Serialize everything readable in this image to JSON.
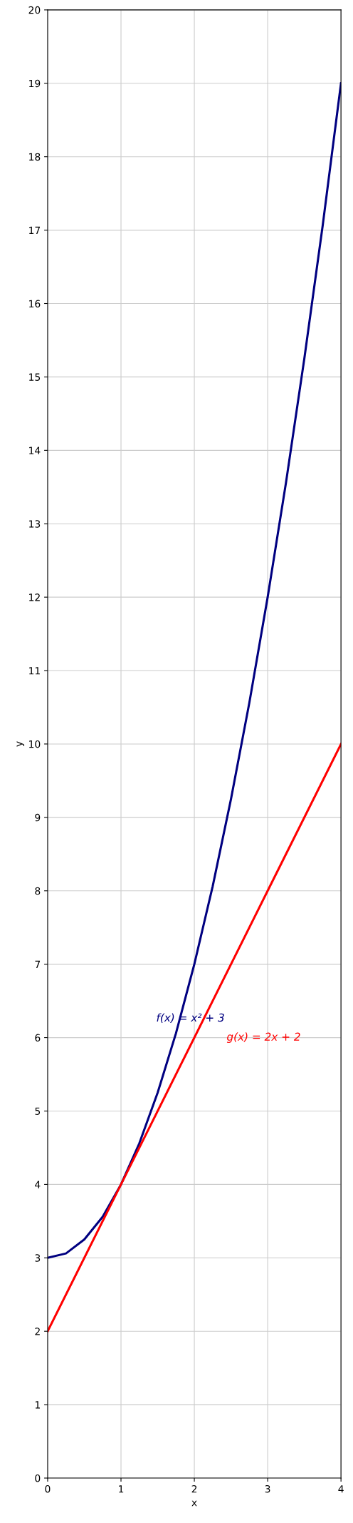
{
  "chart_data": {
    "type": "line",
    "xlabel": "x",
    "ylabel": "y",
    "xlim": [
      0,
      4
    ],
    "ylim": [
      0,
      20
    ],
    "xticks": [
      0,
      1,
      2,
      3,
      4
    ],
    "yticks": [
      0,
      1,
      2,
      3,
      4,
      5,
      6,
      7,
      8,
      9,
      10,
      11,
      12,
      13,
      14,
      15,
      16,
      17,
      18,
      19,
      20
    ],
    "grid": true,
    "series": [
      {
        "name": "f(x) = x² + 3",
        "color": "#000080",
        "x": [
          0,
          0.25,
          0.5,
          0.75,
          1,
          1.25,
          1.5,
          1.75,
          2,
          2.25,
          2.5,
          2.75,
          3,
          3.25,
          3.5,
          3.75,
          4
        ],
        "values": [
          3,
          3.06,
          3.25,
          3.56,
          4,
          4.56,
          5.25,
          6.06,
          7,
          8.06,
          9.25,
          10.56,
          12,
          13.56,
          15.25,
          17.06,
          19
        ]
      },
      {
        "name": "g(x) = 2x + 2",
        "color": "#ff0000",
        "x": [
          0,
          1,
          2,
          3,
          4
        ],
        "values": [
          2,
          4,
          6,
          8,
          10
        ]
      }
    ]
  }
}
